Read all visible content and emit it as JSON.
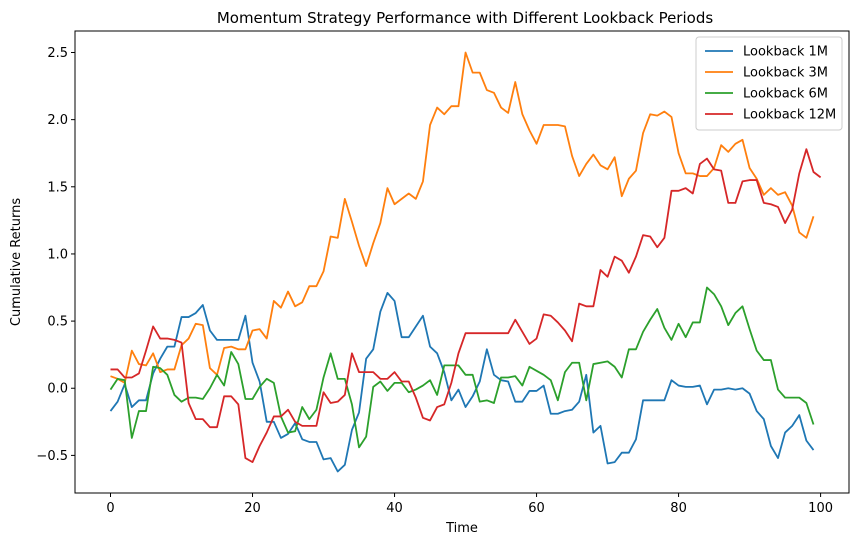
{
  "chart_data": {
    "type": "line",
    "title": "Momentum Strategy Performance with Different Lookback Periods",
    "xlabel": "Time",
    "ylabel": "Cumulative Returns",
    "xlim": [
      -5,
      104
    ],
    "ylim": [
      -0.78,
      2.66
    ],
    "xticks": [
      0,
      20,
      40,
      60,
      80,
      100
    ],
    "xtick_labels": [
      "0",
      "20",
      "40",
      "60",
      "80",
      "100"
    ],
    "yticks": [
      -0.5,
      0.0,
      0.5,
      1.0,
      1.5,
      2.0,
      2.5
    ],
    "ytick_labels": [
      "−0.5",
      "0.0",
      "0.5",
      "1.0",
      "1.5",
      "2.0",
      "2.5"
    ],
    "grid": false,
    "legend_position": "top-right",
    "series": [
      {
        "name": "Lookback 1M",
        "color": "#1f77b4",
        "values": [
          -0.17,
          -0.1,
          0.03,
          -0.14,
          -0.09,
          -0.09,
          0.11,
          0.22,
          0.31,
          0.31,
          0.53,
          0.53,
          0.56,
          0.62,
          0.43,
          0.36,
          0.36,
          0.36,
          0.36,
          0.54,
          0.19,
          0.05,
          -0.25,
          -0.25,
          -0.37,
          -0.34,
          -0.26,
          -0.38,
          -0.4,
          -0.4,
          -0.53,
          -0.52,
          -0.62,
          -0.57,
          -0.31,
          -0.18,
          0.22,
          0.29,
          0.57,
          0.71,
          0.65,
          0.38,
          0.38,
          0.46,
          0.54,
          0.31,
          0.26,
          0.12,
          -0.09,
          -0.01,
          -0.14,
          -0.06,
          0.05,
          0.29,
          0.1,
          0.06,
          0.05,
          -0.1,
          -0.1,
          -0.02,
          -0.02,
          0.02,
          -0.19,
          -0.19,
          -0.17,
          -0.16,
          -0.1,
          0.1,
          -0.33,
          -0.28,
          -0.56,
          -0.55,
          -0.48,
          -0.48,
          -0.38,
          -0.09,
          -0.09,
          -0.09,
          -0.09,
          0.06,
          0.02,
          0.01,
          0.01,
          0.02,
          -0.12,
          -0.01,
          -0.01,
          0.0,
          -0.01,
          0.0,
          -0.04,
          -0.17,
          -0.23,
          -0.43,
          -0.52,
          -0.33,
          -0.28,
          -0.2,
          -0.39,
          -0.46
        ]
      },
      {
        "name": "Lookback 3M",
        "color": "#ff7f0e",
        "values": [
          0.09,
          0.07,
          0.04,
          0.28,
          0.18,
          0.17,
          0.26,
          0.12,
          0.14,
          0.14,
          0.32,
          0.37,
          0.48,
          0.47,
          0.15,
          0.1,
          0.3,
          0.31,
          0.29,
          0.29,
          0.43,
          0.44,
          0.37,
          0.65,
          0.6,
          0.72,
          0.61,
          0.64,
          0.76,
          0.76,
          0.87,
          1.13,
          1.12,
          1.41,
          1.24,
          1.06,
          0.91,
          1.08,
          1.23,
          1.49,
          1.37,
          1.41,
          1.45,
          1.41,
          1.54,
          1.96,
          2.09,
          2.04,
          2.1,
          2.1,
          2.5,
          2.35,
          2.35,
          2.22,
          2.2,
          2.09,
          2.05,
          2.28,
          2.04,
          1.92,
          1.82,
          1.96,
          1.96,
          1.96,
          1.95,
          1.73,
          1.58,
          1.67,
          1.74,
          1.66,
          1.63,
          1.72,
          1.43,
          1.56,
          1.62,
          1.9,
          2.04,
          2.03,
          2.06,
          2.02,
          1.75,
          1.6,
          1.6,
          1.58,
          1.58,
          1.64,
          1.81,
          1.76,
          1.82,
          1.85,
          1.64,
          1.56,
          1.44,
          1.49,
          1.44,
          1.46,
          1.36,
          1.16,
          1.12,
          1.28
        ]
      },
      {
        "name": "Lookback 6M",
        "color": "#2ca02c",
        "values": [
          -0.01,
          0.07,
          0.06,
          -0.37,
          -0.17,
          -0.17,
          0.16,
          0.15,
          0.1,
          -0.05,
          -0.1,
          -0.07,
          -0.07,
          -0.08,
          0.0,
          0.1,
          0.02,
          0.27,
          0.18,
          -0.08,
          -0.08,
          0.01,
          0.07,
          0.04,
          -0.21,
          -0.33,
          -0.32,
          -0.14,
          -0.23,
          -0.16,
          0.08,
          0.26,
          0.07,
          0.07,
          -0.12,
          -0.44,
          -0.36,
          0.01,
          0.05,
          -0.02,
          0.04,
          0.04,
          -0.03,
          -0.01,
          0.02,
          0.06,
          -0.05,
          0.17,
          0.17,
          0.17,
          0.1,
          0.1,
          -0.1,
          -0.09,
          -0.11,
          0.08,
          0.08,
          0.09,
          0.02,
          0.16,
          0.13,
          0.1,
          0.06,
          -0.09,
          0.12,
          0.19,
          0.19,
          -0.09,
          0.18,
          0.19,
          0.2,
          0.16,
          0.08,
          0.29,
          0.29,
          0.42,
          0.51,
          0.59,
          0.45,
          0.36,
          0.48,
          0.38,
          0.49,
          0.49,
          0.75,
          0.7,
          0.61,
          0.47,
          0.56,
          0.61,
          0.44,
          0.28,
          0.21,
          0.21,
          -0.01,
          -0.07,
          -0.07,
          -0.07,
          -0.11,
          -0.27
        ]
      },
      {
        "name": "Lookback 12M",
        "color": "#d62728",
        "values": [
          0.14,
          0.14,
          0.08,
          0.08,
          0.11,
          0.28,
          0.46,
          0.37,
          0.37,
          0.36,
          0.34,
          -0.11,
          -0.23,
          -0.23,
          -0.29,
          -0.29,
          -0.06,
          -0.06,
          -0.12,
          -0.52,
          -0.55,
          -0.43,
          -0.33,
          -0.21,
          -0.21,
          -0.16,
          -0.25,
          -0.28,
          -0.28,
          -0.28,
          -0.03,
          -0.11,
          -0.1,
          -0.05,
          0.26,
          0.12,
          0.12,
          0.12,
          0.07,
          0.07,
          0.12,
          0.05,
          0.05,
          -0.07,
          -0.22,
          -0.24,
          -0.14,
          -0.12,
          0.04,
          0.26,
          0.41,
          0.41,
          0.41,
          0.41,
          0.41,
          0.41,
          0.41,
          0.51,
          0.42,
          0.33,
          0.37,
          0.55,
          0.54,
          0.49,
          0.43,
          0.35,
          0.63,
          0.61,
          0.61,
          0.88,
          0.83,
          0.98,
          0.95,
          0.86,
          0.98,
          1.14,
          1.13,
          1.05,
          1.12,
          1.47,
          1.47,
          1.49,
          1.45,
          1.67,
          1.71,
          1.63,
          1.62,
          1.38,
          1.38,
          1.54,
          1.55,
          1.55,
          1.38,
          1.37,
          1.35,
          1.23,
          1.33,
          1.6,
          1.78,
          1.61,
          1.57
        ]
      }
    ]
  }
}
